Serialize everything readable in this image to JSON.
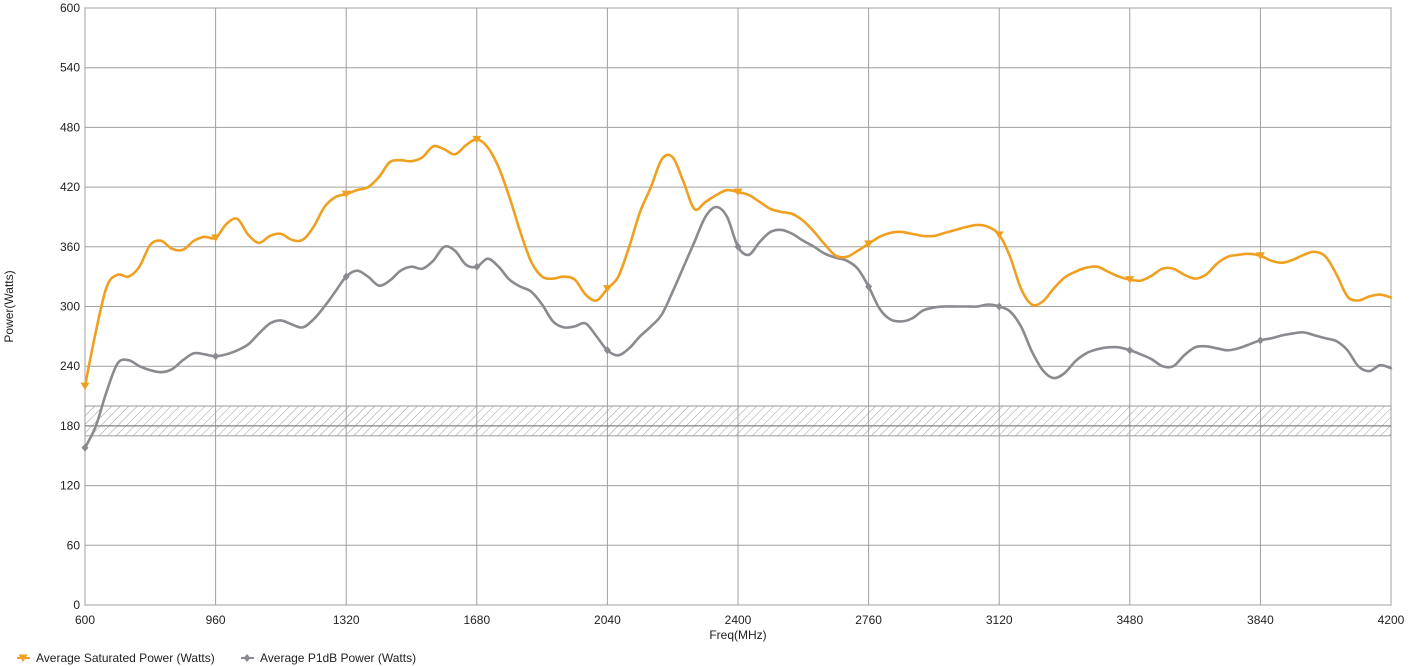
{
  "chart_data": {
    "type": "line",
    "xlabel": "Freq(MHz)",
    "ylabel": "Power(Watts)",
    "xlim": [
      600,
      4200
    ],
    "ylim": [
      0,
      600
    ],
    "x_ticks": [
      600,
      960,
      1320,
      1680,
      2040,
      2400,
      2760,
      3120,
      3480,
      3840,
      4200
    ],
    "y_ticks": [
      0,
      60,
      120,
      180,
      240,
      300,
      360,
      420,
      480,
      540,
      600
    ],
    "grid": true,
    "legend_position": "bottom-left",
    "reference_band": {
      "line": 180,
      "range": [
        170,
        200
      ]
    },
    "series": [
      {
        "name": "Average Saturated Power (Watts)",
        "color": "#F0A020",
        "marker": "down-triangle",
        "marker_x": [
          600,
          960,
          1320,
          1680,
          2040,
          2400,
          2760,
          3120,
          3480,
          3840
        ],
        "points": [
          [
            600,
            220
          ],
          [
            630,
            275
          ],
          [
            660,
            320
          ],
          [
            690,
            332
          ],
          [
            720,
            330
          ],
          [
            750,
            340
          ],
          [
            780,
            362
          ],
          [
            810,
            366
          ],
          [
            840,
            358
          ],
          [
            870,
            357
          ],
          [
            900,
            366
          ],
          [
            930,
            370
          ],
          [
            960,
            369
          ],
          [
            990,
            383
          ],
          [
            1020,
            388
          ],
          [
            1050,
            372
          ],
          [
            1080,
            364
          ],
          [
            1110,
            371
          ],
          [
            1140,
            373
          ],
          [
            1170,
            367
          ],
          [
            1200,
            367
          ],
          [
            1230,
            380
          ],
          [
            1260,
            400
          ],
          [
            1290,
            410
          ],
          [
            1320,
            413
          ],
          [
            1350,
            417
          ],
          [
            1380,
            420
          ],
          [
            1410,
            430
          ],
          [
            1440,
            445
          ],
          [
            1470,
            447
          ],
          [
            1500,
            446
          ],
          [
            1530,
            450
          ],
          [
            1560,
            461
          ],
          [
            1590,
            458
          ],
          [
            1620,
            453
          ],
          [
            1650,
            462
          ],
          [
            1680,
            468
          ],
          [
            1710,
            460
          ],
          [
            1740,
            440
          ],
          [
            1770,
            410
          ],
          [
            1800,
            375
          ],
          [
            1830,
            345
          ],
          [
            1860,
            330
          ],
          [
            1890,
            328
          ],
          [
            1920,
            330
          ],
          [
            1950,
            327
          ],
          [
            1980,
            312
          ],
          [
            2010,
            306
          ],
          [
            2040,
            318
          ],
          [
            2070,
            330
          ],
          [
            2100,
            360
          ],
          [
            2130,
            395
          ],
          [
            2160,
            420
          ],
          [
            2190,
            448
          ],
          [
            2220,
            450
          ],
          [
            2250,
            425
          ],
          [
            2280,
            398
          ],
          [
            2310,
            405
          ],
          [
            2340,
            412
          ],
          [
            2370,
            417
          ],
          [
            2400,
            415
          ],
          [
            2430,
            412
          ],
          [
            2460,
            405
          ],
          [
            2490,
            398
          ],
          [
            2520,
            395
          ],
          [
            2550,
            393
          ],
          [
            2580,
            386
          ],
          [
            2610,
            375
          ],
          [
            2640,
            362
          ],
          [
            2670,
            351
          ],
          [
            2700,
            350
          ],
          [
            2730,
            356
          ],
          [
            2760,
            363
          ],
          [
            2790,
            370
          ],
          [
            2820,
            374
          ],
          [
            2850,
            375
          ],
          [
            2880,
            373
          ],
          [
            2910,
            371
          ],
          [
            2940,
            371
          ],
          [
            2970,
            374
          ],
          [
            3000,
            377
          ],
          [
            3030,
            380
          ],
          [
            3060,
            382
          ],
          [
            3090,
            380
          ],
          [
            3120,
            372
          ],
          [
            3150,
            350
          ],
          [
            3180,
            318
          ],
          [
            3210,
            302
          ],
          [
            3240,
            305
          ],
          [
            3270,
            318
          ],
          [
            3300,
            329
          ],
          [
            3330,
            335
          ],
          [
            3360,
            339
          ],
          [
            3390,
            340
          ],
          [
            3420,
            335
          ],
          [
            3450,
            330
          ],
          [
            3480,
            327
          ],
          [
            3510,
            326
          ],
          [
            3540,
            331
          ],
          [
            3570,
            338
          ],
          [
            3600,
            338
          ],
          [
            3630,
            332
          ],
          [
            3660,
            328
          ],
          [
            3690,
            332
          ],
          [
            3720,
            343
          ],
          [
            3750,
            350
          ],
          [
            3780,
            352
          ],
          [
            3810,
            353
          ],
          [
            3840,
            351
          ],
          [
            3870,
            346
          ],
          [
            3900,
            344
          ],
          [
            3930,
            347
          ],
          [
            3960,
            352
          ],
          [
            3990,
            355
          ],
          [
            4020,
            350
          ],
          [
            4050,
            332
          ],
          [
            4080,
            310
          ],
          [
            4110,
            306
          ],
          [
            4140,
            310
          ],
          [
            4170,
            312
          ],
          [
            4200,
            309
          ]
        ]
      },
      {
        "name": "Average P1dB Power (Watts)",
        "color": "#8A8A90",
        "marker": "diamond",
        "marker_x": [
          600,
          960,
          1320,
          1680,
          2040,
          2400,
          2760,
          3120,
          3480,
          3840
        ],
        "points": [
          [
            600,
            158
          ],
          [
            630,
            180
          ],
          [
            660,
            215
          ],
          [
            690,
            243
          ],
          [
            720,
            246
          ],
          [
            750,
            240
          ],
          [
            780,
            236
          ],
          [
            810,
            234
          ],
          [
            840,
            237
          ],
          [
            870,
            246
          ],
          [
            900,
            253
          ],
          [
            930,
            252
          ],
          [
            960,
            250
          ],
          [
            990,
            252
          ],
          [
            1020,
            256
          ],
          [
            1050,
            262
          ],
          [
            1080,
            273
          ],
          [
            1110,
            283
          ],
          [
            1140,
            286
          ],
          [
            1170,
            282
          ],
          [
            1200,
            279
          ],
          [
            1230,
            287
          ],
          [
            1260,
            300
          ],
          [
            1290,
            315
          ],
          [
            1320,
            330
          ],
          [
            1350,
            336
          ],
          [
            1380,
            330
          ],
          [
            1410,
            321
          ],
          [
            1440,
            326
          ],
          [
            1470,
            336
          ],
          [
            1500,
            340
          ],
          [
            1530,
            338
          ],
          [
            1560,
            346
          ],
          [
            1590,
            360
          ],
          [
            1620,
            356
          ],
          [
            1650,
            342
          ],
          [
            1680,
            340
          ],
          [
            1710,
            348
          ],
          [
            1740,
            340
          ],
          [
            1770,
            327
          ],
          [
            1800,
            320
          ],
          [
            1830,
            315
          ],
          [
            1860,
            302
          ],
          [
            1890,
            285
          ],
          [
            1920,
            279
          ],
          [
            1950,
            280
          ],
          [
            1980,
            283
          ],
          [
            2010,
            270
          ],
          [
            2040,
            256
          ],
          [
            2070,
            251
          ],
          [
            2100,
            258
          ],
          [
            2130,
            270
          ],
          [
            2160,
            280
          ],
          [
            2190,
            292
          ],
          [
            2220,
            315
          ],
          [
            2250,
            340
          ],
          [
            2280,
            365
          ],
          [
            2310,
            390
          ],
          [
            2340,
            400
          ],
          [
            2370,
            390
          ],
          [
            2400,
            360
          ],
          [
            2430,
            352
          ],
          [
            2460,
            365
          ],
          [
            2490,
            375
          ],
          [
            2520,
            377
          ],
          [
            2550,
            373
          ],
          [
            2580,
            366
          ],
          [
            2610,
            360
          ],
          [
            2640,
            353
          ],
          [
            2670,
            349
          ],
          [
            2700,
            346
          ],
          [
            2730,
            338
          ],
          [
            2760,
            320
          ],
          [
            2790,
            298
          ],
          [
            2820,
            287
          ],
          [
            2850,
            285
          ],
          [
            2880,
            288
          ],
          [
            2910,
            296
          ],
          [
            2940,
            299
          ],
          [
            2970,
            300
          ],
          [
            3000,
            300
          ],
          [
            3030,
            300
          ],
          [
            3060,
            300
          ],
          [
            3090,
            302
          ],
          [
            3120,
            300
          ],
          [
            3150,
            295
          ],
          [
            3180,
            280
          ],
          [
            3210,
            255
          ],
          [
            3240,
            236
          ],
          [
            3270,
            228
          ],
          [
            3300,
            233
          ],
          [
            3330,
            245
          ],
          [
            3360,
            253
          ],
          [
            3390,
            257
          ],
          [
            3420,
            259
          ],
          [
            3450,
            259
          ],
          [
            3480,
            256
          ],
          [
            3510,
            252
          ],
          [
            3540,
            247
          ],
          [
            3570,
            240
          ],
          [
            3600,
            240
          ],
          [
            3630,
            251
          ],
          [
            3660,
            259
          ],
          [
            3690,
            260
          ],
          [
            3720,
            258
          ],
          [
            3750,
            256
          ],
          [
            3780,
            258
          ],
          [
            3810,
            262
          ],
          [
            3840,
            266
          ],
          [
            3870,
            268
          ],
          [
            3900,
            271
          ],
          [
            3930,
            273
          ],
          [
            3960,
            274
          ],
          [
            3990,
            271
          ],
          [
            4020,
            268
          ],
          [
            4050,
            265
          ],
          [
            4080,
            256
          ],
          [
            4110,
            240
          ],
          [
            4140,
            235
          ],
          [
            4170,
            241
          ],
          [
            4200,
            238
          ]
        ]
      }
    ]
  }
}
